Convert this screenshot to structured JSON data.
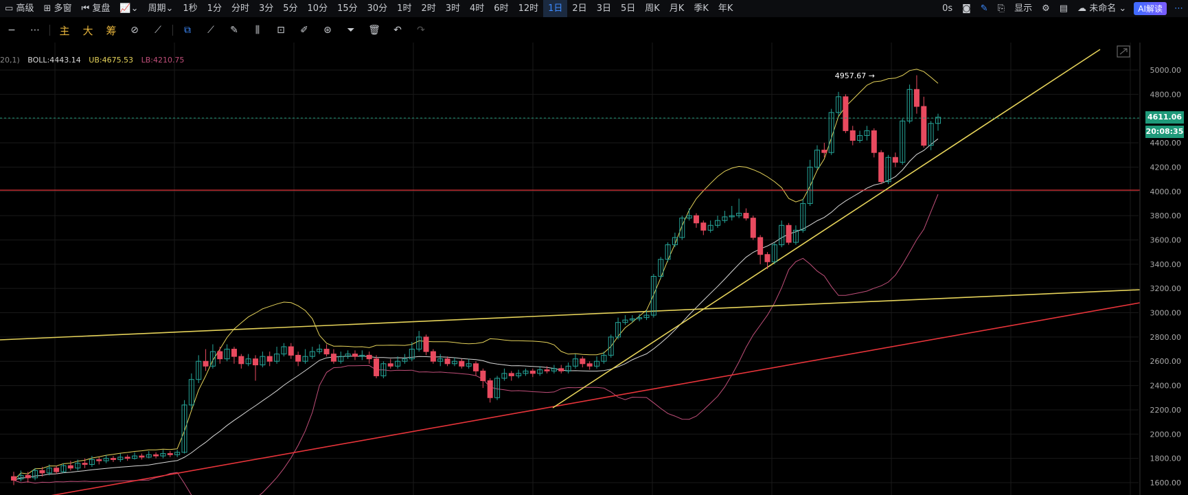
{
  "toolbar": {
    "advanced": "高级",
    "multi_window": "多窗",
    "replay": "复盘",
    "period": "周期",
    "intervals": [
      "1秒",
      "1分",
      "分时",
      "3分",
      "5分",
      "10分",
      "15分",
      "30分",
      "1时",
      "2时",
      "3时",
      "4时",
      "6时",
      "12时",
      "1日",
      "2日",
      "3日",
      "5日",
      "周K",
      "月K",
      "季K",
      "年K"
    ],
    "active_interval": "1日",
    "timer": "0s",
    "display": "显示",
    "unnamed": "未命名",
    "ai_button": "AI解读"
  },
  "toolbar2": {
    "main": "主",
    "large": "大",
    "chips": "筹"
  },
  "indicator": {
    "prefix": "20,1)",
    "boll": "BOLL:4443.14",
    "ub": "UB:4675.53",
    "lb": "LB:4210.75",
    "boll_color": "#d9d9d9",
    "ub_color": "#e6d35a",
    "lb_color": "#c14f7a"
  },
  "chart_data": {
    "type": "candlestick",
    "y_ticks": [
      1600,
      1800,
      2000,
      2200,
      2400,
      2600,
      2800,
      3000,
      3200,
      3400,
      3600,
      3800,
      4000,
      4200,
      4400,
      4600,
      4800,
      5000
    ],
    "ylim": [
      1550,
      5200
    ],
    "current_price": "4611.06",
    "countdown": "20:08:35",
    "high_annotation": "4957.67",
    "up_color": "#26a69a",
    "down_color": "#e84a5f",
    "horizontal_lines": [
      {
        "price": 4010,
        "color": "#e8343a"
      }
    ],
    "candles_approx": [
      [
        1650,
        1620,
        1690,
        1580
      ],
      [
        1630,
        1660,
        1700,
        1610
      ],
      [
        1660,
        1640,
        1690,
        1600
      ],
      [
        1640,
        1700,
        1720,
        1620
      ],
      [
        1700,
        1680,
        1730,
        1650
      ],
      [
        1680,
        1720,
        1750,
        1660
      ],
      [
        1720,
        1690,
        1740,
        1670
      ],
      [
        1690,
        1740,
        1760,
        1680
      ],
      [
        1740,
        1720,
        1780,
        1700
      ],
      [
        1720,
        1760,
        1790,
        1700
      ],
      [
        1760,
        1750,
        1800,
        1720
      ],
      [
        1750,
        1790,
        1820,
        1730
      ],
      [
        1790,
        1780,
        1810,
        1750
      ],
      [
        1780,
        1800,
        1830,
        1760
      ],
      [
        1800,
        1790,
        1820,
        1770
      ],
      [
        1790,
        1810,
        1840,
        1770
      ],
      [
        1810,
        1800,
        1830,
        1780
      ],
      [
        1800,
        1820,
        1850,
        1790
      ],
      [
        1820,
        1810,
        1840,
        1790
      ],
      [
        1810,
        1830,
        1860,
        1800
      ],
      [
        1830,
        1820,
        1850,
        1800
      ],
      [
        1820,
        1840,
        1870,
        1800
      ],
      [
        1840,
        1830,
        1860,
        1810
      ],
      [
        1830,
        1850,
        1870,
        1810
      ],
      [
        1850,
        2240,
        2280,
        1840
      ],
      [
        2240,
        2450,
        2500,
        2200
      ],
      [
        2450,
        2600,
        2650,
        2420
      ],
      [
        2600,
        2560,
        2700,
        2520
      ],
      [
        2560,
        2680,
        2740,
        2540
      ],
      [
        2680,
        2620,
        2720,
        2580
      ],
      [
        2620,
        2700,
        2740,
        2600
      ],
      [
        2700,
        2640,
        2720,
        2580
      ],
      [
        2640,
        2580,
        2660,
        2540
      ],
      [
        2580,
        2620,
        2660,
        2560
      ],
      [
        2620,
        2570,
        2650,
        2440
      ],
      [
        2570,
        2640,
        2680,
        2550
      ],
      [
        2640,
        2600,
        2680,
        2560
      ],
      [
        2600,
        2660,
        2720,
        2580
      ],
      [
        2660,
        2720,
        2750,
        2640
      ],
      [
        2720,
        2650,
        2750,
        2620
      ],
      [
        2650,
        2600,
        2680,
        2560
      ],
      [
        2600,
        2640,
        2700,
        2580
      ],
      [
        2640,
        2680,
        2720,
        2620
      ],
      [
        2680,
        2700,
        2740,
        2660
      ],
      [
        2700,
        2660,
        2740,
        2640
      ],
      [
        2660,
        2600,
        2700,
        2580
      ],
      [
        2600,
        2640,
        2680,
        2580
      ],
      [
        2640,
        2660,
        2690,
        2620
      ],
      [
        2660,
        2640,
        2690,
        2610
      ],
      [
        2640,
        2650,
        2690,
        2610
      ],
      [
        2650,
        2620,
        2680,
        2580
      ],
      [
        2620,
        2480,
        2650,
        2460
      ],
      [
        2480,
        2580,
        2600,
        2460
      ],
      [
        2580,
        2560,
        2620,
        2540
      ],
      [
        2560,
        2600,
        2640,
        2540
      ],
      [
        2600,
        2620,
        2660,
        2580
      ],
      [
        2620,
        2700,
        2760,
        2600
      ],
      [
        2700,
        2800,
        2850,
        2680
      ],
      [
        2800,
        2680,
        2820,
        2650
      ],
      [
        2680,
        2600,
        2700,
        2580
      ],
      [
        2600,
        2620,
        2660,
        2560
      ],
      [
        2620,
        2580,
        2640,
        2560
      ],
      [
        2580,
        2600,
        2630,
        2560
      ],
      [
        2600,
        2560,
        2620,
        2540
      ],
      [
        2560,
        2580,
        2620,
        2540
      ],
      [
        2580,
        2520,
        2600,
        2480
      ],
      [
        2520,
        2440,
        2540,
        2380
      ],
      [
        2440,
        2300,
        2460,
        2260
      ],
      [
        2300,
        2460,
        2480,
        2280
      ],
      [
        2460,
        2500,
        2540,
        2440
      ],
      [
        2500,
        2480,
        2520,
        2440
      ],
      [
        2480,
        2500,
        2530,
        2460
      ],
      [
        2500,
        2520,
        2540,
        2480
      ],
      [
        2520,
        2500,
        2540,
        2470
      ],
      [
        2500,
        2530,
        2560,
        2480
      ],
      [
        2530,
        2520,
        2560,
        2500
      ],
      [
        2520,
        2540,
        2570,
        2500
      ],
      [
        2540,
        2520,
        2570,
        2500
      ],
      [
        2520,
        2560,
        2590,
        2500
      ],
      [
        2560,
        2620,
        2660,
        2540
      ],
      [
        2620,
        2580,
        2640,
        2550
      ],
      [
        2580,
        2560,
        2600,
        2530
      ],
      [
        2560,
        2600,
        2640,
        2540
      ],
      [
        2600,
        2650,
        2680,
        2580
      ],
      [
        2650,
        2800,
        2820,
        2630
      ],
      [
        2800,
        2920,
        2960,
        2780
      ],
      [
        2920,
        2940,
        2980,
        2900
      ],
      [
        2940,
        2950,
        2980,
        2920
      ],
      [
        2950,
        2960,
        2990,
        2930
      ],
      [
        2960,
        2980,
        3020,
        2940
      ],
      [
        2980,
        3300,
        3320,
        2960
      ],
      [
        3300,
        3440,
        3460,
        3280
      ],
      [
        3440,
        3560,
        3580,
        3420
      ],
      [
        3560,
        3620,
        3660,
        3540
      ],
      [
        3620,
        3780,
        3800,
        3600
      ],
      [
        3780,
        3800,
        3860,
        3760
      ],
      [
        3800,
        3740,
        3820,
        3700
      ],
      [
        3740,
        3680,
        3760,
        3640
      ],
      [
        3680,
        3720,
        3760,
        3660
      ],
      [
        3720,
        3760,
        3800,
        3700
      ],
      [
        3760,
        3790,
        3840,
        3740
      ],
      [
        3790,
        3800,
        3880,
        3760
      ],
      [
        3800,
        3820,
        3940,
        3780
      ],
      [
        3820,
        3780,
        3860,
        3760
      ],
      [
        3780,
        3620,
        3800,
        3600
      ],
      [
        3620,
        3480,
        3640,
        3400
      ],
      [
        3480,
        3420,
        3500,
        3360
      ],
      [
        3420,
        3560,
        3580,
        3400
      ],
      [
        3560,
        3720,
        3760,
        3540
      ],
      [
        3720,
        3580,
        3740,
        3560
      ],
      [
        3580,
        3680,
        3720,
        3560
      ],
      [
        3680,
        3900,
        3940,
        3660
      ],
      [
        3900,
        4200,
        4260,
        3880
      ],
      [
        4200,
        4340,
        4380,
        4180
      ],
      [
        4340,
        4320,
        4400,
        4280
      ],
      [
        4320,
        4650,
        4680,
        4300
      ],
      [
        4650,
        4780,
        4820,
        4620
      ],
      [
        4780,
        4500,
        4800,
        4480
      ],
      [
        4500,
        4420,
        4540,
        4380
      ],
      [
        4420,
        4460,
        4500,
        4400
      ],
      [
        4460,
        4500,
        4540,
        4420
      ],
      [
        4500,
        4320,
        4520,
        4280
      ],
      [
        4320,
        4080,
        4340,
        4060
      ],
      [
        4080,
        4280,
        4300,
        4060
      ],
      [
        4280,
        4240,
        4320,
        4200
      ],
      [
        4240,
        4580,
        4600,
        4220
      ],
      [
        4580,
        4840,
        4880,
        4560
      ],
      [
        4840,
        4700,
        4957,
        4640
      ],
      [
        4700,
        4380,
        4780,
        4360
      ],
      [
        4380,
        4560,
        4580,
        4340
      ],
      [
        4560,
        4611,
        4640,
        4500
      ]
    ]
  }
}
